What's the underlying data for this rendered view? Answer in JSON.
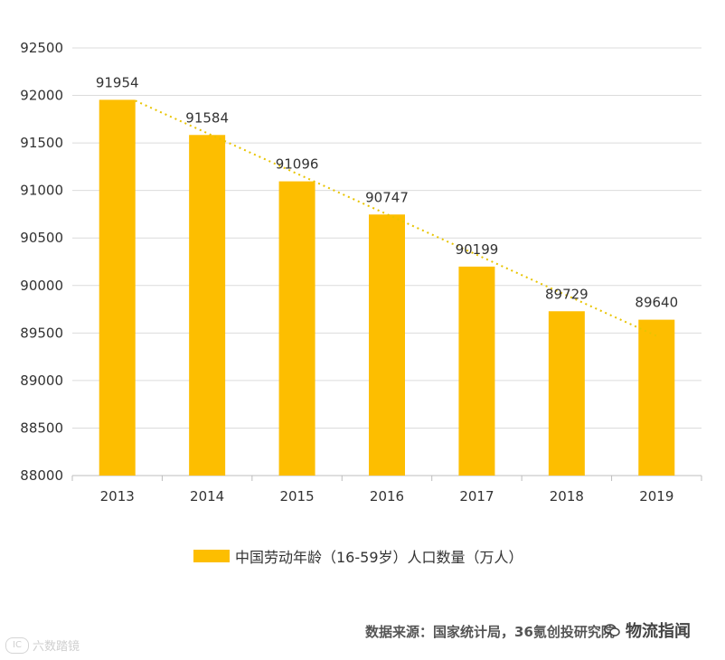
{
  "chart_data": {
    "type": "bar",
    "categories": [
      "2013",
      "2014",
      "2015",
      "2016",
      "2017",
      "2018",
      "2019"
    ],
    "series": [
      {
        "name": "中国劳动年龄（16-59岁）人口数量（万人）",
        "values": [
          91954,
          91584,
          91096,
          90747,
          90199,
          89729,
          89640
        ]
      }
    ],
    "ylim": [
      88000,
      92500
    ],
    "yticks": [
      88000,
      88500,
      89000,
      89500,
      90000,
      90500,
      91000,
      91500,
      92000,
      92500
    ],
    "trendline": "linear, dotted",
    "grid": true,
    "legend_position": "bottom",
    "bar_color": "#FDBE00",
    "trend_color": "#E8C400"
  },
  "legend": {
    "label": "中国劳动年龄（16-59岁）人口数量（万人）"
  },
  "source": "数据来源：国家统计局，36氪创投研究院",
  "watermark_left": "六数踏镜",
  "watermark_right": "物流指闻"
}
